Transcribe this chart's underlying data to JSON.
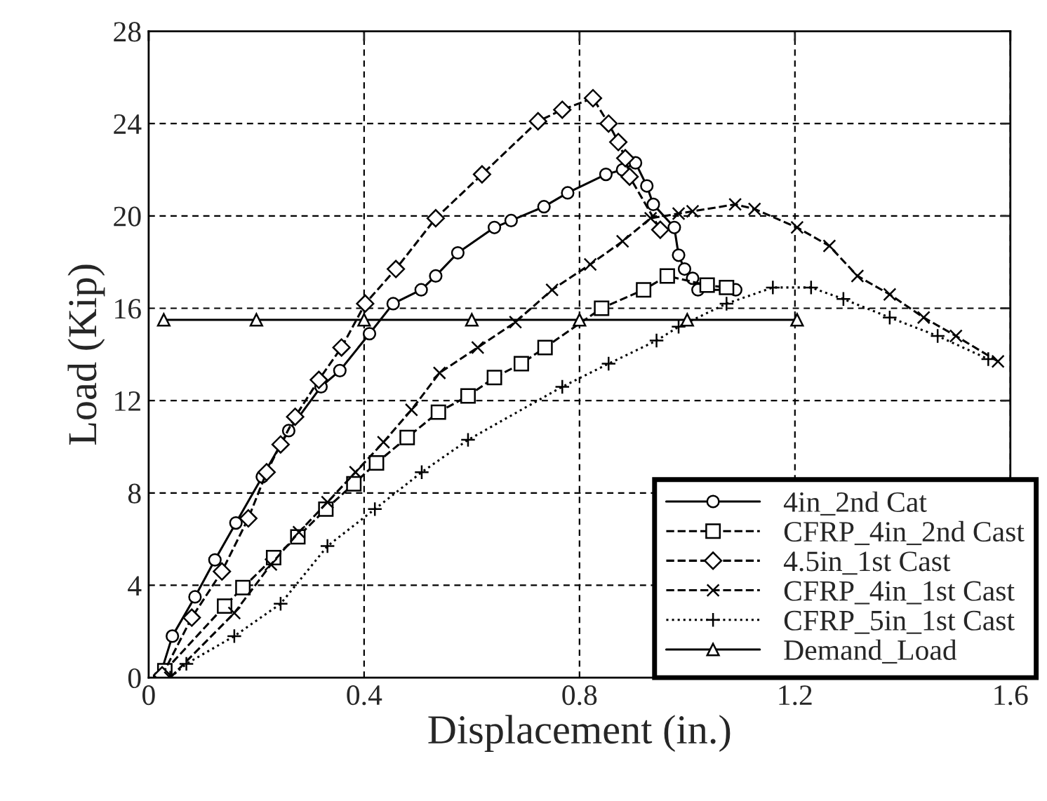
{
  "chart_data": {
    "type": "line",
    "xlabel": "Displacement (in.)",
    "ylabel": "Load (Kip)",
    "xlim": [
      0,
      1.6
    ],
    "xticks": [
      0,
      0.4,
      0.8,
      1.2,
      1.6
    ],
    "ylim": [
      0,
      28
    ],
    "yticks": [
      0,
      4,
      8,
      12,
      16,
      20,
      24,
      28
    ],
    "grid": true,
    "legend": "bottom right",
    "series": [
      {
        "name": "4in_2nd Cat",
        "color": "#000000",
        "marker": "circle",
        "line_style": "solid",
        "x": [
          0.02,
          0.044,
          0.086,
          0.123,
          0.162,
          0.211,
          0.26,
          0.32,
          0.355,
          0.41,
          0.454,
          0.506,
          0.533,
          0.574,
          0.642,
          0.673,
          0.734,
          0.778,
          0.849,
          0.88,
          0.904,
          0.925,
          0.937,
          0.976,
          0.984,
          0.995,
          1.01,
          1.02,
          1.09
        ],
        "values": [
          0,
          1.8,
          3.5,
          5.1,
          6.7,
          8.7,
          10.7,
          12.6,
          13.3,
          14.9,
          16.2,
          16.8,
          17.4,
          18.4,
          19.5,
          19.8,
          20.4,
          21.0,
          21.8,
          22.0,
          22.3,
          21.3,
          20.5,
          19.5,
          18.3,
          17.7,
          17.3,
          16.8,
          16.8
        ]
      },
      {
        "name": "CFRP_4in_2nd Cast",
        "color": "#000000",
        "marker": "square",
        "line_style": "dashed",
        "x": [
          0.03,
          0.141,
          0.175,
          0.232,
          0.277,
          0.329,
          0.381,
          0.423,
          0.48,
          0.538,
          0.593,
          0.642,
          0.692,
          0.736,
          0.841,
          0.919,
          0.963,
          1.037,
          1.073
        ],
        "values": [
          0.3,
          3.1,
          3.9,
          5.2,
          6.1,
          7.3,
          8.4,
          9.3,
          10.4,
          11.5,
          12.2,
          13.0,
          13.6,
          14.3,
          16.0,
          16.8,
          17.4,
          17.0,
          16.9
        ]
      },
      {
        "name": "4.5in_1st Cast",
        "color": "#000000",
        "marker": "diamond",
        "line_style": "dashed",
        "x": [
          0.025,
          0.08,
          0.136,
          0.185,
          0.219,
          0.245,
          0.272,
          0.316,
          0.358,
          0.402,
          0.459,
          0.533,
          0.619,
          0.723,
          0.768,
          0.825,
          0.854,
          0.872,
          0.885,
          0.893,
          0.95
        ],
        "values": [
          0.1,
          2.6,
          4.6,
          6.9,
          8.9,
          10.1,
          11.3,
          12.9,
          14.3,
          16.2,
          17.7,
          19.9,
          21.8,
          24.1,
          24.6,
          25.1,
          24.0,
          23.2,
          22.5,
          21.7,
          19.4
        ]
      },
      {
        "name": "CFRP_4in_1st Cast",
        "color": "#000000",
        "marker": "cross",
        "line_style": "dashed",
        "x": [
          0.04,
          0.159,
          0.227,
          0.279,
          0.332,
          0.384,
          0.436,
          0.488,
          0.54,
          0.611,
          0.681,
          0.749,
          0.82,
          0.88,
          0.932,
          0.984,
          1.01,
          1.089,
          1.125,
          1.204,
          1.264,
          1.316,
          1.376,
          1.439,
          1.499,
          1.577
        ],
        "values": [
          0,
          2.8,
          4.9,
          6.3,
          7.6,
          8.9,
          10.2,
          11.6,
          13.2,
          14.3,
          15.4,
          16.8,
          17.9,
          18.9,
          19.9,
          20.1,
          20.2,
          20.5,
          20.3,
          19.5,
          18.7,
          17.4,
          16.6,
          15.6,
          14.8,
          13.7
        ]
      },
      {
        "name": "CFRP_5in_1st Cast",
        "color": "#000000",
        "marker": "plus",
        "line_style": "dotted",
        "x": [
          0.04,
          0.07,
          0.159,
          0.245,
          0.332,
          0.42,
          0.507,
          0.593,
          0.768,
          0.854,
          0.943,
          0.984,
          1.073,
          1.159,
          1.23,
          1.29,
          1.376,
          1.465,
          1.559
        ],
        "values": [
          0,
          0.6,
          1.8,
          3.2,
          5.7,
          7.3,
          8.9,
          10.3,
          12.6,
          13.6,
          14.6,
          15.2,
          16.2,
          16.9,
          16.9,
          16.4,
          15.6,
          14.8,
          13.8
        ]
      },
      {
        "name": "Demand_Load",
        "color": "#000000",
        "marker": "triangle",
        "line_style": "solid",
        "x": [
          0.028,
          0.2,
          0.4,
          0.6,
          0.8,
          1.0,
          1.204
        ],
        "values": [
          15.5,
          15.5,
          15.5,
          15.5,
          15.5,
          15.5,
          15.5
        ]
      }
    ]
  }
}
